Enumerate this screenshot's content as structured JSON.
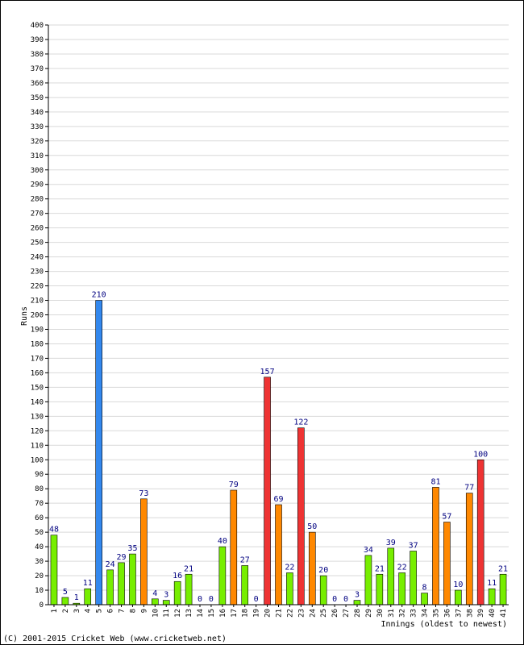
{
  "chart_data": {
    "type": "bar",
    "title": "",
    "xlabel": "Innings (oldest to newest)",
    "ylabel": "Runs",
    "ylim": [
      0,
      400
    ],
    "ytick_step": 10,
    "grid": true,
    "categories": [
      "1",
      "2",
      "3",
      "4",
      "5",
      "6",
      "7",
      "8",
      "9",
      "10",
      "11",
      "12",
      "13",
      "14",
      "15",
      "16",
      "17",
      "18",
      "19",
      "20",
      "21",
      "22",
      "23",
      "24",
      "25",
      "26",
      "27",
      "28",
      "29",
      "30",
      "31",
      "32",
      "33",
      "34",
      "35",
      "36",
      "37",
      "38",
      "39",
      "40",
      "41"
    ],
    "values": [
      48,
      5,
      1,
      11,
      210,
      24,
      29,
      35,
      73,
      4,
      3,
      16,
      21,
      0,
      0,
      40,
      79,
      27,
      0,
      157,
      69,
      22,
      122,
      50,
      20,
      0,
      0,
      3,
      34,
      21,
      39,
      22,
      37,
      8,
      81,
      57,
      10,
      77,
      100,
      11,
      21
    ],
    "color_rules": [
      {
        "min": 200,
        "color": "#3388ee"
      },
      {
        "min": 100,
        "color": "#ee3333"
      },
      {
        "min": 50,
        "color": "#ff8800"
      },
      {
        "min": 0,
        "color": "#77ee00"
      }
    ],
    "bar_outline": "#000000",
    "grid_color": "#d9d9d9"
  },
  "footer": {
    "copyright": "(C) 2001-2015 Cricket Web (www.cricketweb.net)"
  }
}
